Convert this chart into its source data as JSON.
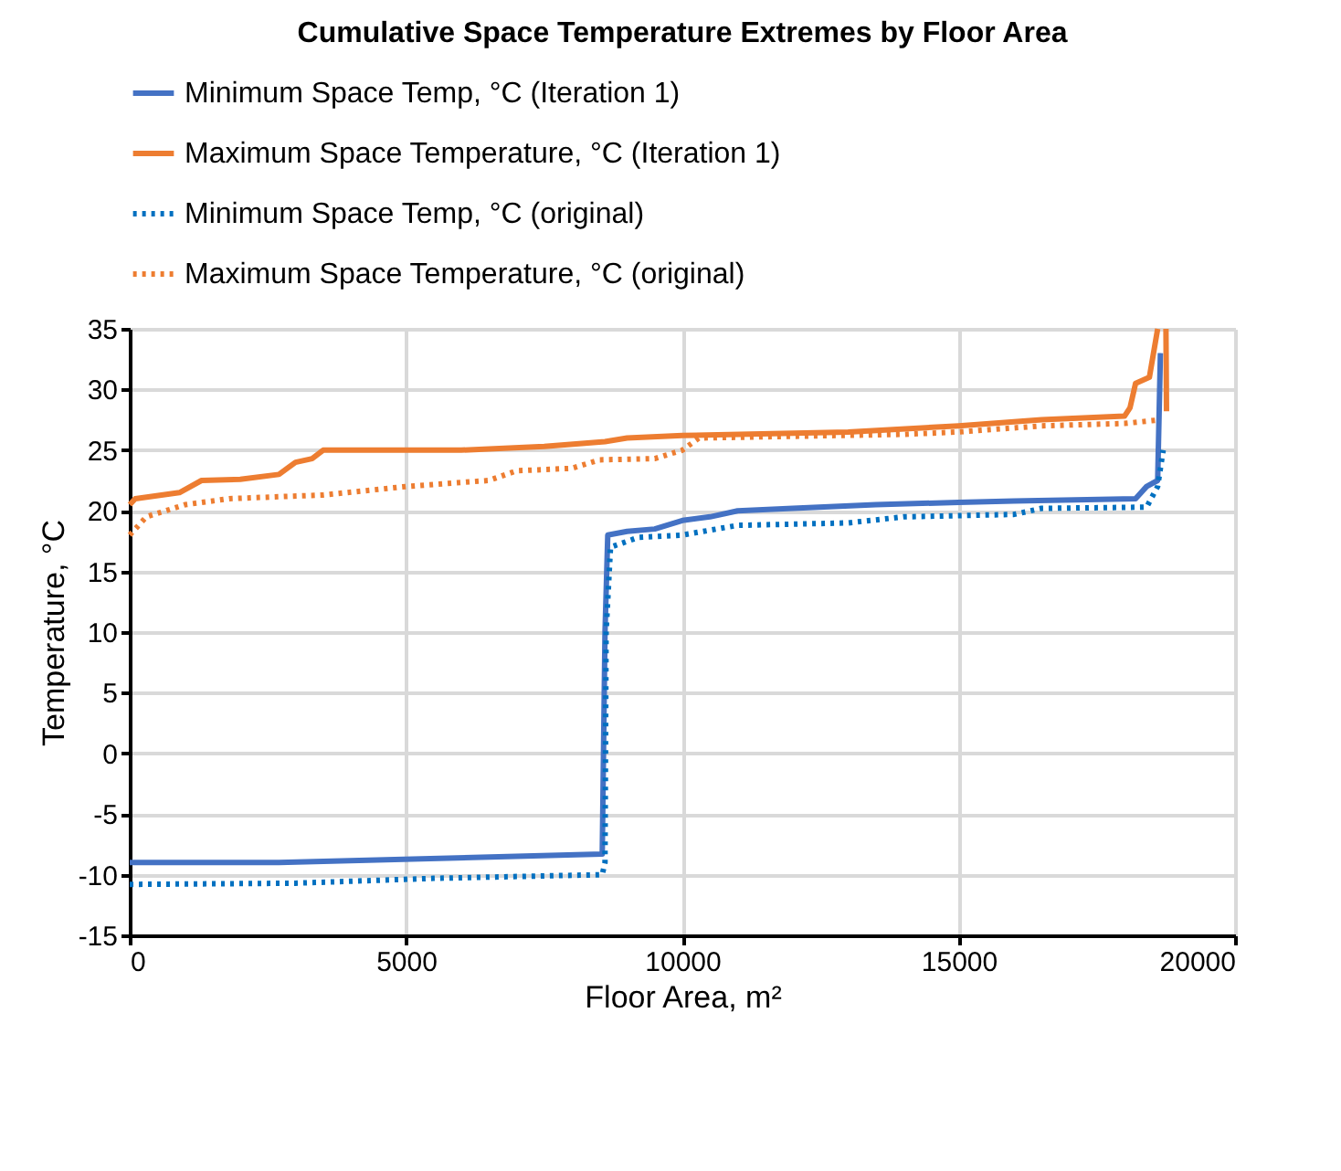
{
  "chart_data": {
    "type": "line",
    "title": "Cumulative Space Temperature Extremes by Floor Area",
    "xlabel": "Floor Area, m²",
    "ylabel": "Temperature, °C",
    "xlim": [
      0,
      20000
    ],
    "xticks": [
      0,
      5000,
      10000,
      15000,
      20000
    ],
    "ylim": [
      -15,
      35
    ],
    "yticks": [
      -15,
      -10,
      -5,
      0,
      5,
      10,
      15,
      20,
      25,
      30,
      35
    ],
    "grid": true,
    "legend": "top",
    "series": [
      {
        "name": "Minimum Space Temp, °C (Iteration 1)",
        "color": "#4472c4",
        "line_style": "solid",
        "x": [
          0,
          2700,
          8550,
          8600,
          8650,
          9000,
          9500,
          10000,
          10500,
          11000,
          12000,
          13500,
          15000,
          16000,
          18200,
          18400,
          18600,
          18650
        ],
        "values": [
          -9,
          -9,
          -8.3,
          10,
          18,
          18.3,
          18.5,
          19.2,
          19.5,
          20,
          20.2,
          20.5,
          20.7,
          20.8,
          21,
          22,
          22.5,
          33
        ]
      },
      {
        "name": "Maximum Space Temperature, °C (Iteration 1)",
        "color": "#ed7d31",
        "line_style": "solid",
        "x": [
          0,
          100,
          900,
          1300,
          2000,
          2700,
          3000,
          3300,
          3500,
          6000,
          7500,
          8600,
          9000,
          10000,
          13000,
          15000,
          16500,
          18000,
          18100,
          18200,
          18450,
          18600,
          18680,
          18750,
          18760
        ],
        "values": [
          20.5,
          21,
          21.5,
          22.5,
          22.6,
          23,
          24,
          24.3,
          25,
          25,
          25.3,
          25.7,
          26,
          26.2,
          26.5,
          27,
          27.5,
          27.8,
          28.5,
          30.5,
          31,
          35,
          null,
          35,
          28.2
        ]
      },
      {
        "name": "Minimum Space Temp, °C (original)",
        "color": "#0070c0",
        "line_style": "dotted",
        "x": [
          0,
          3000,
          5500,
          8550,
          8600,
          8620,
          8700,
          9200,
          10000,
          11000,
          13000,
          14000,
          16000,
          16500,
          18400,
          18600,
          18700
        ],
        "values": [
          -10.8,
          -10.7,
          -10.3,
          -10,
          -9,
          10,
          17,
          17.8,
          18,
          18.8,
          19,
          19.5,
          19.7,
          20.2,
          20.3,
          22,
          25
        ]
      },
      {
        "name": "Maximum Space Temperature, °C (original)",
        "color": "#ed7d31",
        "line_style": "dotted",
        "x": [
          0,
          300,
          1000,
          1800,
          3500,
          5000,
          6500,
          7000,
          8000,
          8500,
          9500,
          10000,
          10300,
          14000,
          15000,
          16500,
          18000,
          18650
        ],
        "values": [
          18,
          19.5,
          20.5,
          21,
          21.3,
          22,
          22.5,
          23.3,
          23.5,
          24.2,
          24.3,
          25,
          26,
          26.3,
          26.5,
          27,
          27.2,
          27.5
        ]
      }
    ]
  }
}
